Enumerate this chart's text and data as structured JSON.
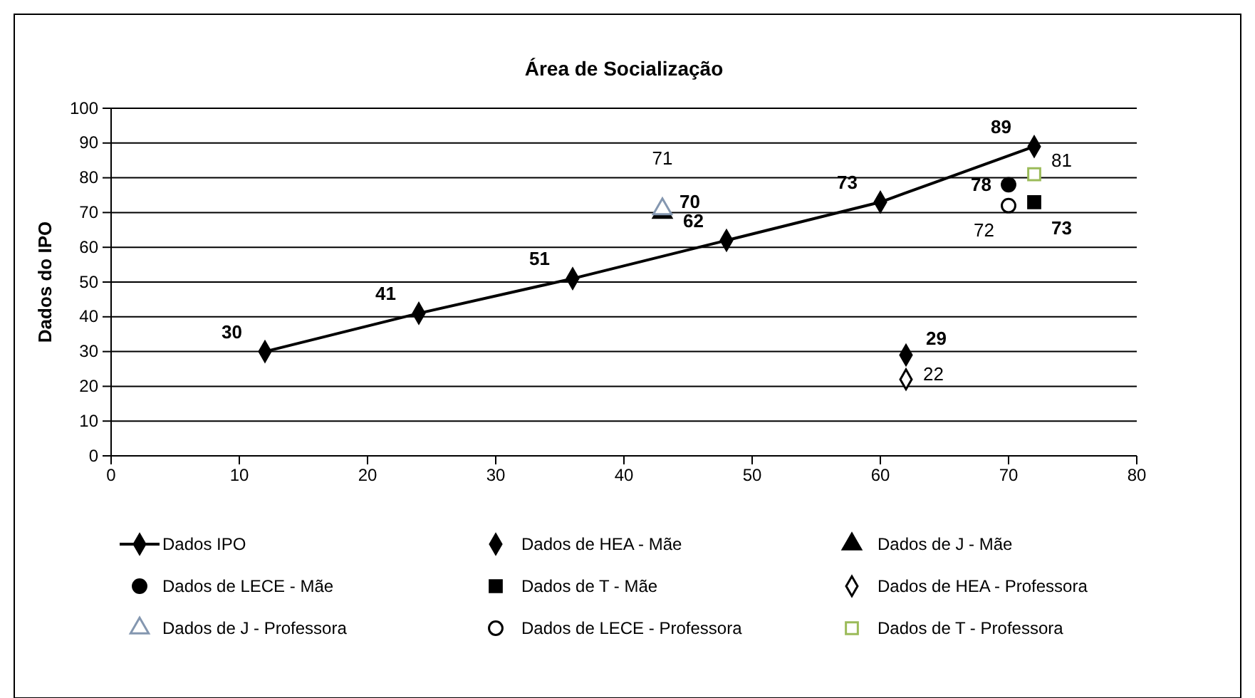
{
  "chart_data": {
    "type": "line",
    "title": "Área de Socialização",
    "ylabel": "Dados do IPO",
    "xlim": [
      0,
      80
    ],
    "xticks": [
      0,
      10,
      20,
      30,
      40,
      50,
      60,
      70,
      80
    ],
    "ylim": [
      0,
      100
    ],
    "yticks": [
      0,
      10,
      20,
      30,
      40,
      50,
      60,
      70,
      80,
      90,
      100
    ],
    "grid": "y",
    "legend": "bottom",
    "data_labels": true,
    "series": [
      {
        "name": "Dados IPO",
        "marker": "diamond",
        "color": "#000000",
        "x": [
          12,
          24,
          36,
          48,
          60,
          72
        ],
        "values": [
          30,
          41,
          51,
          62,
          73,
          89
        ]
      },
      {
        "name": "Dados de HEA - Mãe",
        "type": "scatter",
        "marker": "diamond",
        "color": "#000000",
        "x": [
          62
        ],
        "values": [
          29
        ]
      },
      {
        "name": "Dados de J - Mãe",
        "type": "scatter",
        "marker": "triangle",
        "color": "#000000",
        "x": [
          43
        ],
        "values": [
          70
        ]
      },
      {
        "name": "Dados de LECE - Mãe",
        "type": "scatter",
        "marker": "circle",
        "color": "#000000",
        "x": [
          70
        ],
        "values": [
          78
        ]
      },
      {
        "name": "Dados de T - Mãe",
        "type": "scatter",
        "marker": "square",
        "color": "#000000",
        "x": [
          72
        ],
        "values": [
          73
        ]
      },
      {
        "name": "Dados de HEA - Professora",
        "type": "scatter",
        "marker": "diamond",
        "color": "#000000",
        "x": [
          62
        ],
        "values": [
          22
        ]
      },
      {
        "name": "Dados de J - Professora",
        "type": "scatter",
        "marker": "triangle",
        "color": "#8497b0",
        "x": [
          43
        ],
        "values": [
          71
        ]
      },
      {
        "name": "Dados de LECE - Professora",
        "type": "scatter",
        "marker": "circle",
        "color": "#000000",
        "x": [
          70
        ],
        "values": [
          72
        ]
      },
      {
        "name": "Dados de T - Professora",
        "type": "scatter",
        "marker": "square",
        "color": "#9bbb59",
        "x": [
          72
        ],
        "values": [
          81
        ]
      }
    ]
  }
}
